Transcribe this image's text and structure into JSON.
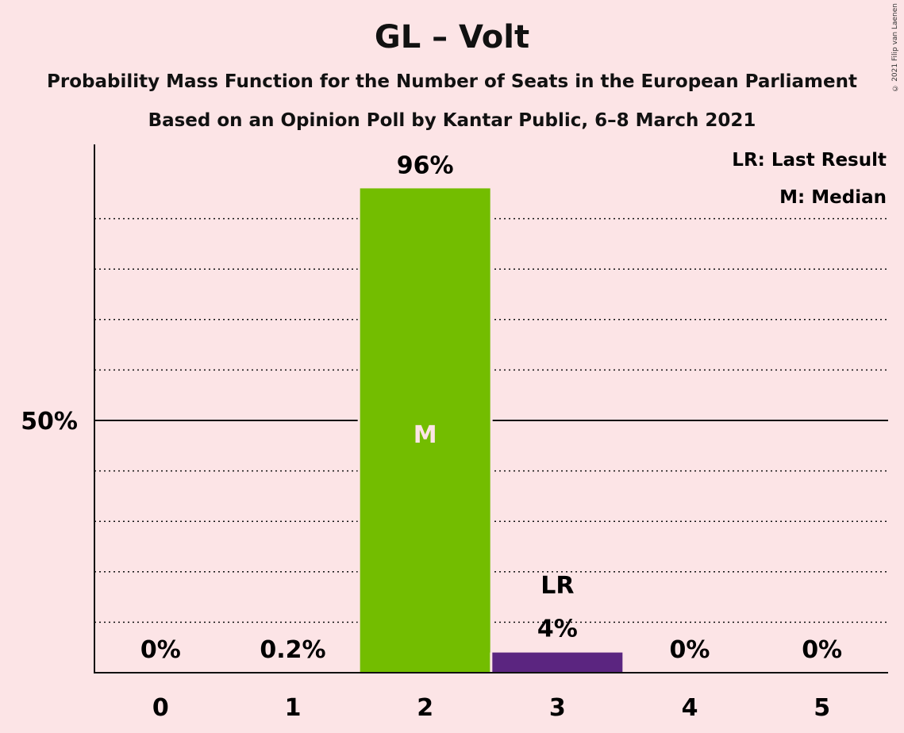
{
  "title": "GL – Volt",
  "subtitle_1": "Probability Mass Function for the Number of Seats in the European Parliament",
  "subtitle_2": "Based on an Opinion Poll by Kantar Public, 6–8 March 2021",
  "copyright": "© 2021 Filip van Laenen",
  "legend": {
    "last_result": "LR: Last Result",
    "median": "M: Median"
  },
  "colors": {
    "background": "#fce4e6",
    "bar_green": "#73bd00",
    "bar_purple": "#5b2580",
    "median_text": "#fce4e6"
  },
  "chart_data": {
    "type": "bar",
    "categories": [
      "0",
      "1",
      "2",
      "3",
      "4",
      "5"
    ],
    "values": [
      0,
      0.2,
      96,
      4,
      0,
      0
    ],
    "value_labels": [
      "0%",
      "0.2%",
      "96%",
      "4%",
      "0%",
      "0%"
    ],
    "bar_colors": [
      "#73bd00",
      "#73bd00",
      "#73bd00",
      "#5b2580",
      "#73bd00",
      "#73bd00"
    ],
    "median_category": "2",
    "median_marker": "M",
    "last_result_category": "3",
    "last_result_marker": "LR",
    "ylim": [
      0,
      105
    ],
    "yticks": [
      50
    ],
    "ytick_labels": [
      "50%"
    ],
    "minor_gridlines": [
      10,
      20,
      30,
      40,
      60,
      70,
      80,
      90
    ],
    "legend_position": "top-right"
  }
}
